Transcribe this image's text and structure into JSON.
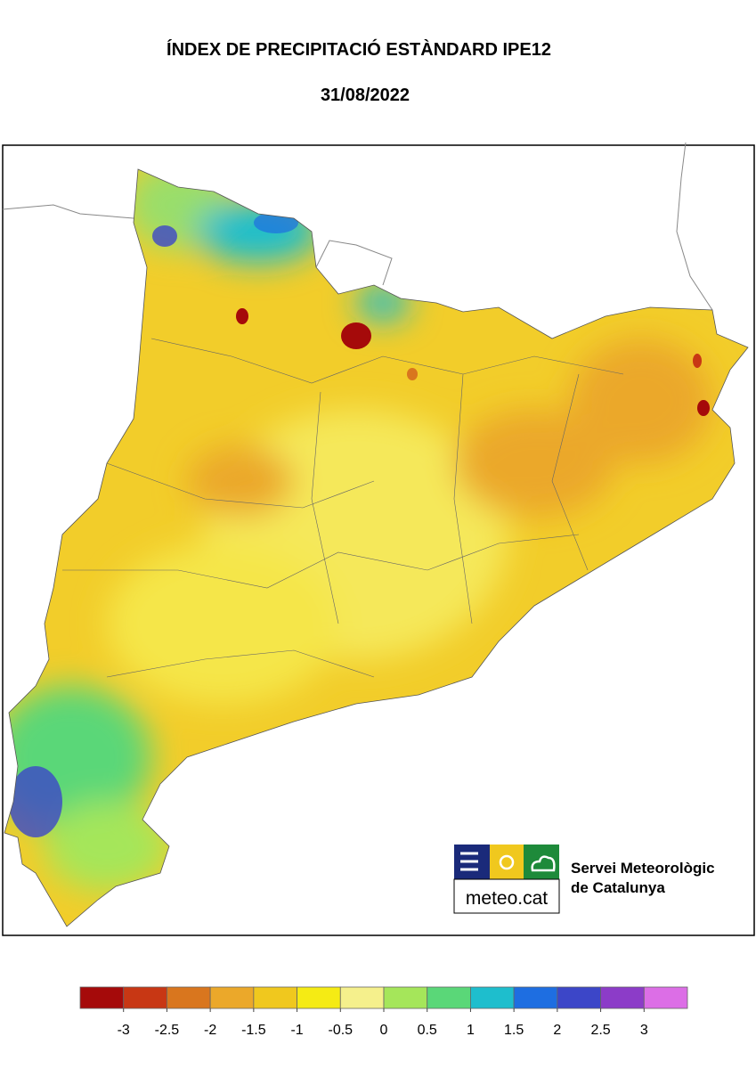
{
  "header": {
    "title": "ÍNDEX DE PRECIPITACIÓ ESTÀNDARD IPE12",
    "date": "31/08/2022"
  },
  "logo": {
    "brand": "meteo.cat",
    "name_line1": "Servei Meteorològic",
    "name_line2": "de Catalunya"
  },
  "legend": {
    "colors": [
      "#a50a0a",
      "#c83714",
      "#d9761e",
      "#eba82a",
      "#f0c81e",
      "#f5eb14",
      "#f5f08c",
      "#a5e65a",
      "#5ad778",
      "#1ebecd",
      "#1e6ee1",
      "#3c46c8",
      "#8c3cc8",
      "#dc6ee6"
    ],
    "ticks": [
      -3,
      -2.5,
      -2,
      -1.5,
      -1,
      -0.5,
      0,
      0.5,
      1,
      1.5,
      2,
      2.5,
      3
    ]
  }
}
